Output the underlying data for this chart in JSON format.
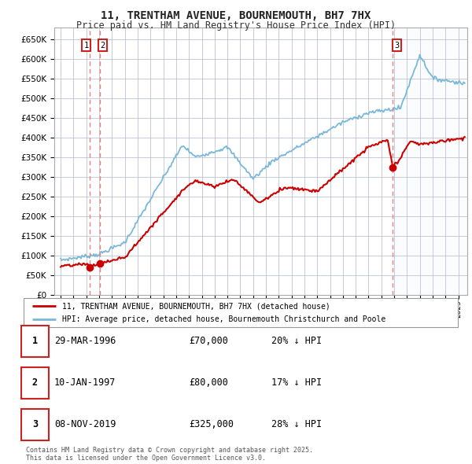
{
  "title": "11, TRENTHAM AVENUE, BOURNEMOUTH, BH7 7HX",
  "subtitle": "Price paid vs. HM Land Registry's House Price Index (HPI)",
  "legend_entry1": "11, TRENTHAM AVENUE, BOURNEMOUTH, BH7 7HX (detached house)",
  "legend_entry2": "HPI: Average price, detached house, Bournemouth Christchurch and Poole",
  "footer": "Contains HM Land Registry data © Crown copyright and database right 2025.\nThis data is licensed under the Open Government Licence v3.0.",
  "sale1_date": 1996.24,
  "sale1_price": 70000,
  "sale2_date": 1997.03,
  "sale2_price": 80000,
  "sale3_date": 2019.86,
  "sale3_price": 325000,
  "table_rows": [
    [
      "1",
      "29-MAR-1996",
      "£70,000",
      "20% ↓ HPI"
    ],
    [
      "2",
      "10-JAN-1997",
      "£80,000",
      "17% ↓ HPI"
    ],
    [
      "3",
      "08-NOV-2019",
      "£325,000",
      "28% ↓ HPI"
    ]
  ],
  "hpi_color": "#7ab8d9",
  "price_color": "#cc0000",
  "vline_color": "#e88080",
  "shade_color": "#e8f0f8",
  "grid_color": "#b0b8cc",
  "bg_color": "#ffffff",
  "ylim": [
    0,
    680000
  ],
  "yticks": [
    0,
    50000,
    100000,
    150000,
    200000,
    250000,
    300000,
    350000,
    400000,
    450000,
    500000,
    550000,
    600000,
    650000
  ],
  "xlim_start": 1993.5,
  "xlim_end": 2025.7
}
